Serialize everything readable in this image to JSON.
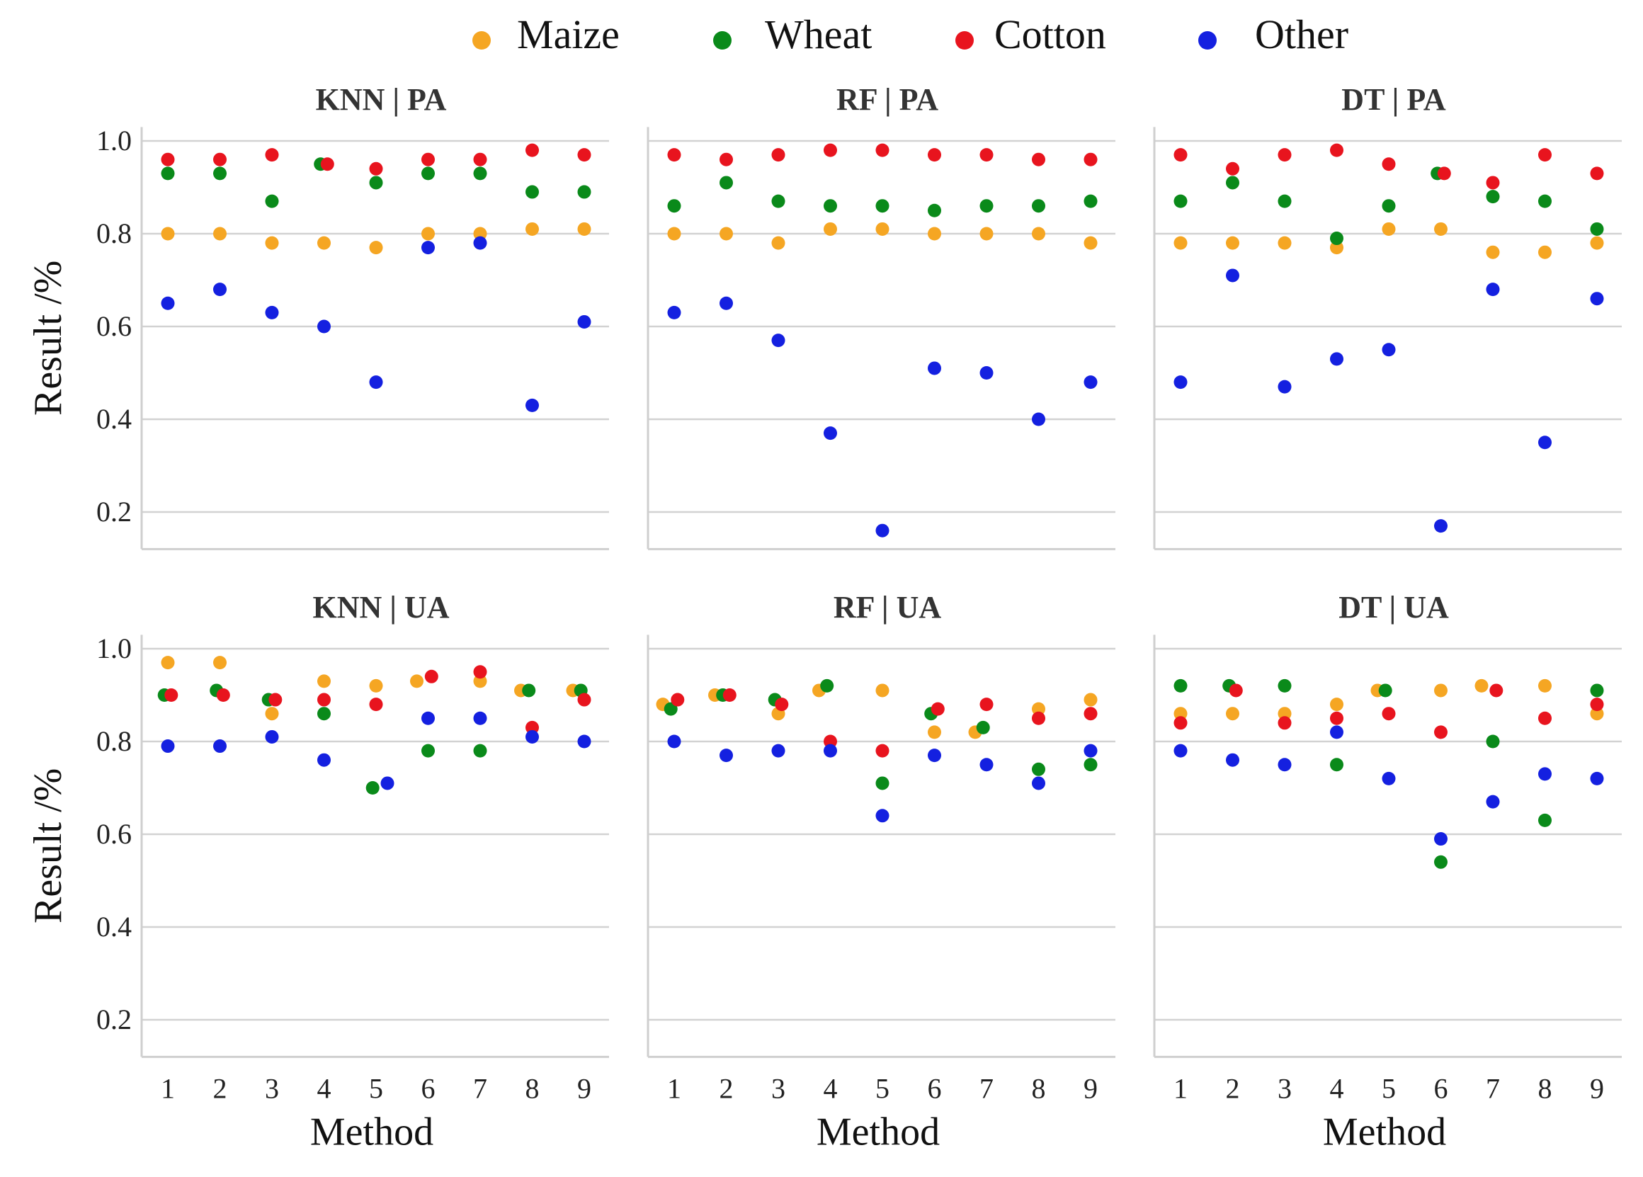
{
  "chart_data": {
    "type": "scatter",
    "legend_position": "top-center",
    "series_names": [
      "Maize",
      "Wheat",
      "Cotton",
      "Other"
    ],
    "colors": {
      "Maize": "#f5a623",
      "Wheat": "#0a8a1a",
      "Cotton": "#e8141e",
      "Other": "#1420e0"
    },
    "x": [
      1,
      2,
      3,
      4,
      5,
      6,
      7,
      8,
      9
    ],
    "xlabel": "Method",
    "ylabel": "Result /%",
    "ylim": [
      0.12,
      1.03
    ],
    "yticks": [
      0.2,
      0.4,
      0.6,
      0.8,
      1.0
    ],
    "ytick_labels": [
      "0.2",
      "0.4",
      "0.6",
      "0.8",
      "1.0"
    ],
    "grid": true,
    "panels": [
      {
        "title": "KNN | PA",
        "series": [
          {
            "name": "Maize",
            "values": [
              0.8,
              0.8,
              0.78,
              0.78,
              0.77,
              0.8,
              0.8,
              0.81,
              0.81
            ]
          },
          {
            "name": "Wheat",
            "values": [
              0.93,
              0.93,
              0.87,
              0.95,
              0.91,
              0.93,
              0.93,
              0.89,
              0.89
            ]
          },
          {
            "name": "Cotton",
            "values": [
              0.96,
              0.96,
              0.97,
              0.95,
              0.94,
              0.96,
              0.96,
              0.98,
              0.97
            ]
          },
          {
            "name": "Other",
            "values": [
              0.65,
              0.68,
              0.63,
              0.6,
              0.48,
              0.77,
              0.78,
              0.43,
              0.61
            ]
          }
        ]
      },
      {
        "title": "RF | PA",
        "series": [
          {
            "name": "Maize",
            "values": [
              0.8,
              0.8,
              0.78,
              0.81,
              0.81,
              0.8,
              0.8,
              0.8,
              0.78
            ]
          },
          {
            "name": "Wheat",
            "values": [
              0.86,
              0.91,
              0.87,
              0.86,
              0.86,
              0.85,
              0.86,
              0.86,
              0.87
            ]
          },
          {
            "name": "Cotton",
            "values": [
              0.97,
              0.96,
              0.97,
              0.98,
              0.98,
              0.97,
              0.97,
              0.96,
              0.96
            ]
          },
          {
            "name": "Other",
            "values": [
              0.63,
              0.65,
              0.57,
              0.37,
              0.16,
              0.51,
              0.5,
              0.4,
              0.48
            ]
          }
        ]
      },
      {
        "title": "DT | PA",
        "series": [
          {
            "name": "Maize",
            "values": [
              0.78,
              0.78,
              0.78,
              0.77,
              0.81,
              0.81,
              0.76,
              0.76,
              0.78
            ]
          },
          {
            "name": "Wheat",
            "values": [
              0.87,
              0.91,
              0.87,
              0.79,
              0.86,
              0.93,
              0.88,
              0.87,
              0.81
            ]
          },
          {
            "name": "Cotton",
            "values": [
              0.97,
              0.94,
              0.97,
              0.98,
              0.95,
              0.93,
              0.91,
              0.97,
              0.93
            ]
          },
          {
            "name": "Other",
            "values": [
              0.48,
              0.71,
              0.47,
              0.53,
              0.55,
              0.17,
              0.68,
              0.35,
              0.66
            ]
          }
        ]
      },
      {
        "title": "KNN | UA",
        "series": [
          {
            "name": "Maize",
            "values": [
              0.97,
              0.97,
              0.86,
              0.93,
              0.92,
              0.93,
              0.93,
              0.91,
              0.91
            ]
          },
          {
            "name": "Wheat",
            "values": [
              0.9,
              0.91,
              0.89,
              0.86,
              0.7,
              0.78,
              0.78,
              0.91,
              0.91
            ]
          },
          {
            "name": "Cotton",
            "values": [
              0.9,
              0.9,
              0.89,
              0.89,
              0.88,
              0.94,
              0.95,
              0.83,
              0.89
            ]
          },
          {
            "name": "Other",
            "values": [
              0.79,
              0.79,
              0.81,
              0.76,
              0.71,
              0.85,
              0.85,
              0.81,
              0.8
            ]
          }
        ]
      },
      {
        "title": "RF | UA",
        "series": [
          {
            "name": "Maize",
            "values": [
              0.88,
              0.9,
              0.86,
              0.91,
              0.91,
              0.82,
              0.82,
              0.87,
              0.89
            ]
          },
          {
            "name": "Wheat",
            "values": [
              0.87,
              0.9,
              0.89,
              0.92,
              0.71,
              0.86,
              0.83,
              0.74,
              0.75
            ]
          },
          {
            "name": "Cotton",
            "values": [
              0.89,
              0.9,
              0.88,
              0.8,
              0.78,
              0.87,
              0.88,
              0.85,
              0.86
            ]
          },
          {
            "name": "Other",
            "values": [
              0.8,
              0.77,
              0.78,
              0.78,
              0.64,
              0.77,
              0.75,
              0.71,
              0.78
            ]
          }
        ]
      },
      {
        "title": "DT | UA",
        "series": [
          {
            "name": "Maize",
            "values": [
              0.86,
              0.86,
              0.86,
              0.88,
              0.91,
              0.91,
              0.92,
              0.92,
              0.86
            ]
          },
          {
            "name": "Wheat",
            "values": [
              0.92,
              0.92,
              0.92,
              0.75,
              0.91,
              0.54,
              0.8,
              0.63,
              0.91
            ]
          },
          {
            "name": "Cotton",
            "values": [
              0.84,
              0.91,
              0.84,
              0.85,
              0.86,
              0.82,
              0.91,
              0.85,
              0.88
            ]
          },
          {
            "name": "Other",
            "values": [
              0.78,
              0.76,
              0.75,
              0.82,
              0.72,
              0.59,
              0.67,
              0.73,
              0.72
            ]
          }
        ]
      }
    ]
  }
}
